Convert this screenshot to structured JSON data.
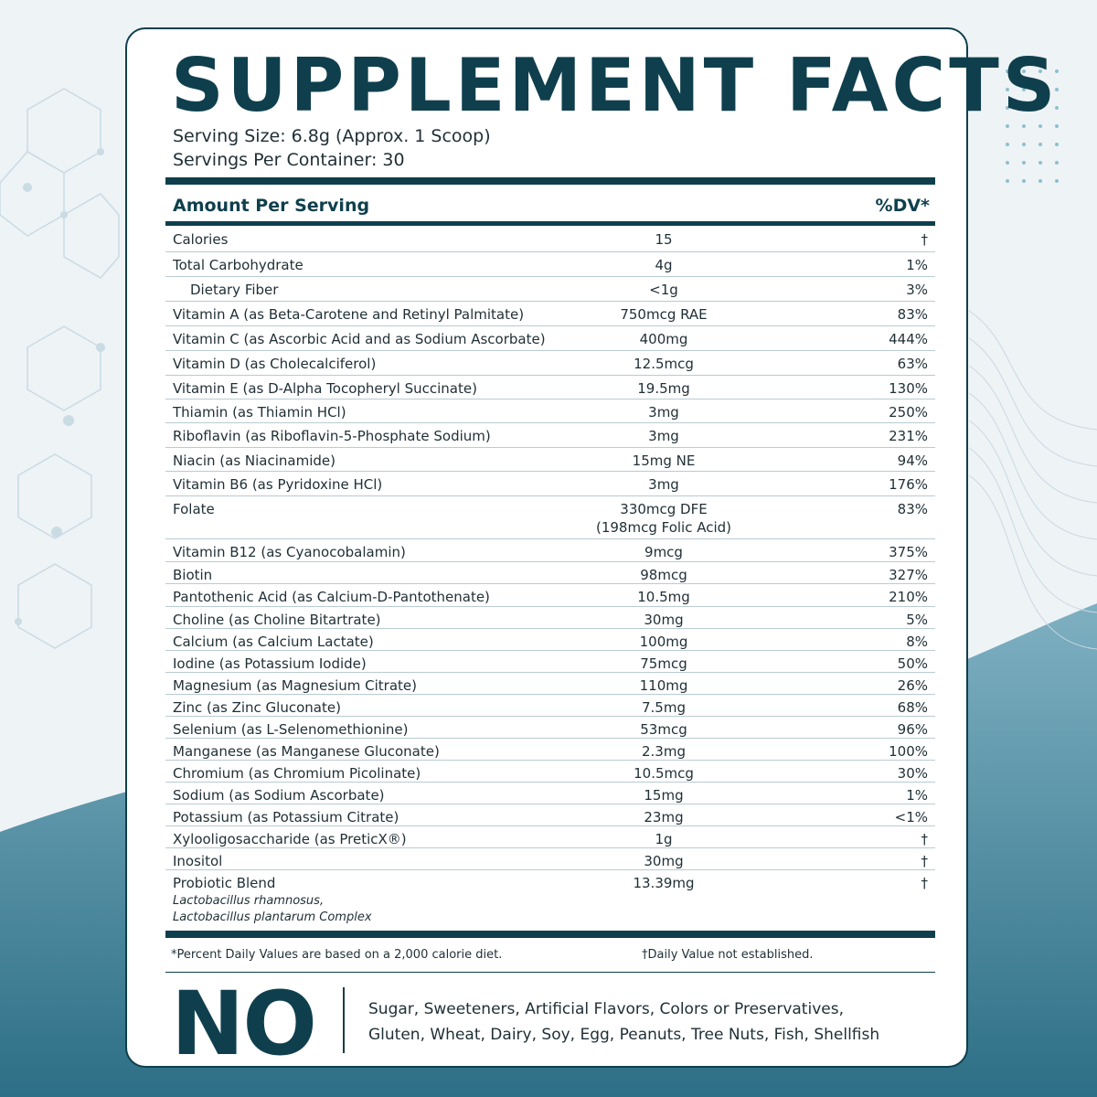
{
  "title": "SUPPLEMENT FACTS",
  "serving_size": "Serving Size: 6.8g (Approx. 1 Scoop)",
  "servings_per_container": "Servings Per Container: 30",
  "header": {
    "amount": "Amount Per Serving",
    "dv": "%DV*"
  },
  "rows": [
    {
      "name": "Calories",
      "amount": "15",
      "dv": "†"
    },
    {
      "name": "Total Carbohydrate",
      "amount": "4g",
      "dv": "1%"
    },
    {
      "name": "Dietary Fiber",
      "amount": "<1g",
      "dv": "3%"
    },
    {
      "name": "Vitamin A (as Beta-Carotene and Retinyl Palmitate)",
      "amount": "750mcg RAE",
      "dv": "83%"
    },
    {
      "name": "Vitamin C (as Ascorbic Acid and as Sodium Ascorbate)",
      "amount": "400mg",
      "dv": "444%"
    },
    {
      "name": "Vitamin D (as Cholecalciferol)",
      "amount": "12.5mcg",
      "dv": "63%"
    },
    {
      "name": "Vitamin E (as D-Alpha Tocopheryl Succinate)",
      "amount": "19.5mg",
      "dv": "130%"
    },
    {
      "name": "Thiamin (as Thiamin HCl)",
      "amount": "3mg",
      "dv": "250%"
    },
    {
      "name": "Riboflavin (as Riboflavin-5-Phosphate Sodium)",
      "amount": "3mg",
      "dv": "231%"
    },
    {
      "name": "Niacin (as Niacinamide)",
      "amount": "15mg NE",
      "dv": "94%"
    },
    {
      "name": "Vitamin B6 (as Pyridoxine HCl)",
      "amount": "3mg",
      "dv": "176%"
    },
    {
      "name": "Folate",
      "amount": "330mcg DFE",
      "amount2": "(198mcg Folic Acid)",
      "dv": "83%"
    },
    {
      "name": "Vitamin B12 (as Cyanocobalamin)",
      "amount": "9mcg",
      "dv": "375%"
    },
    {
      "name": "Biotin",
      "amount": "98mcg",
      "dv": "327%"
    },
    {
      "name": "Pantothenic Acid (as Calcium-D-Pantothenate)",
      "amount": "10.5mg",
      "dv": "210%"
    },
    {
      "name": "Choline (as Choline Bitartrate)",
      "amount": "30mg",
      "dv": "5%"
    },
    {
      "name": "Calcium (as Calcium Lactate)",
      "amount": "100mg",
      "dv": "8%"
    },
    {
      "name": "Iodine (as Potassium Iodide)",
      "amount": "75mcg",
      "dv": "50%"
    },
    {
      "name": "Magnesium (as Magnesium Citrate)",
      "amount": "110mg",
      "dv": "26%"
    },
    {
      "name": "Zinc (as Zinc Gluconate)",
      "amount": "7.5mg",
      "dv": "68%"
    },
    {
      "name": "Selenium (as L-Selenomethionine)",
      "amount": "53mcg",
      "dv": "96%"
    },
    {
      "name": "Manganese (as Manganese Gluconate)",
      "amount": "2.3mg",
      "dv": "100%"
    },
    {
      "name": "Chromium (as Chromium Picolinate)",
      "amount": "10.5mcg",
      "dv": "30%"
    },
    {
      "name": "Sodium (as Sodium Ascorbate)",
      "amount": "15mg",
      "dv": "1%"
    },
    {
      "name": "Potassium (as Potassium Citrate)",
      "amount": "23mg",
      "dv": "<1%"
    },
    {
      "name": "Xylooligosaccharide (as PreticX®)",
      "amount": "1g",
      "dv": "†"
    },
    {
      "name": "Inositol",
      "amount": "30mg",
      "dv": "†"
    },
    {
      "name": "Probiotic Blend",
      "amount": "13.39mg",
      "dv": "†",
      "sub1": "Lactobacillus rhamnosus,",
      "sub2": "Lactobacillus plantarum Complex"
    }
  ],
  "footnote_dv": "*Percent Daily Values are based on a 2,000 calorie diet.",
  "footnote_dagger": "†Daily Value not established.",
  "no_title": "NO",
  "no_line1": "Sugar, Sweeteners, Artificial Flavors, Colors or Preservatives,",
  "no_line2": "Gluten, Wheat, Dairy, Soy, Egg, Peanuts, Tree Nuts, Fish, Shellfish",
  "colors": {
    "primary": "#0f3f4d",
    "accent": "#4d8ea3",
    "divider": "#b9cbd2"
  }
}
